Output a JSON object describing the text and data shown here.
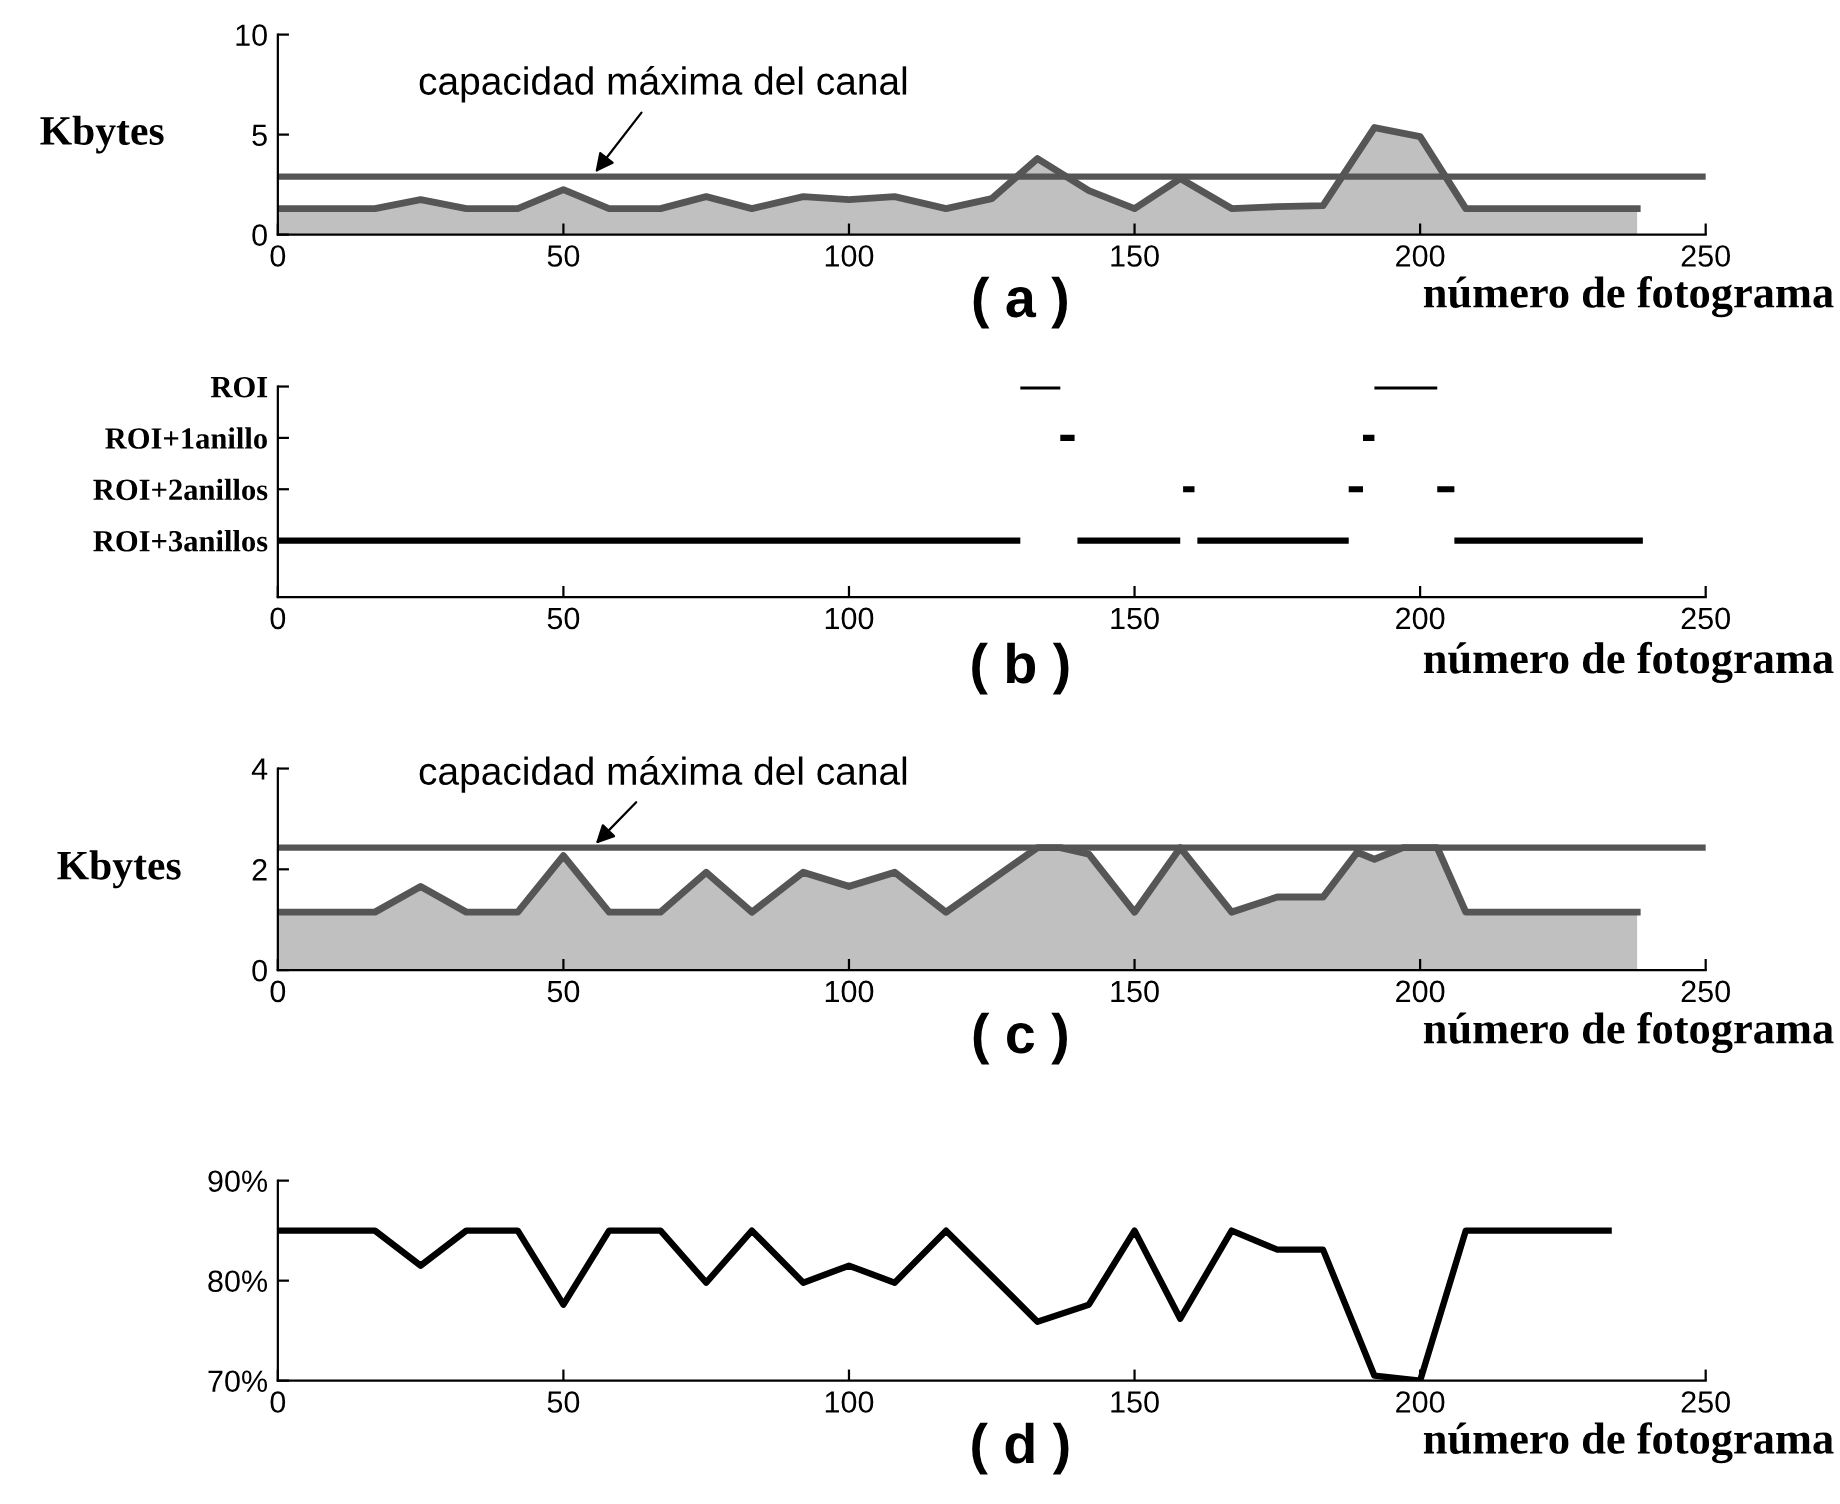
{
  "chart_data": [
    {
      "type": "area",
      "ylabel": "Kbytes",
      "xlabel": "número de fotograma",
      "annotations": [
        "( a )"
      ],
      "x": [
        0,
        17,
        25,
        33,
        42,
        50,
        58,
        67,
        75,
        83,
        92,
        100,
        108,
        117,
        125,
        133,
        142,
        150,
        158,
        167,
        175,
        183,
        192,
        200,
        208,
        238
      ],
      "series": [
        {
          "color": "#c0c0c0",
          "values": [
            1.3,
            1.3,
            1.75,
            1.3,
            1.3,
            2.25,
            1.3,
            1.3,
            1.9,
            1.3,
            1.9,
            1.75,
            1.9,
            1.3,
            1.8,
            3.8,
            2.2,
            1.3,
            2.8,
            1.3,
            1.4,
            1.45,
            5.35,
            4.9,
            1.3,
            1.3
          ]
        }
      ],
      "xlim": [
        0,
        250
      ],
      "xticks": [
        0,
        50,
        100,
        150,
        200,
        250
      ],
      "ylim": [
        0,
        10
      ],
      "yticks": [
        0,
        5,
        10
      ],
      "ref_lines": [
        {
          "axis": "y",
          "value": 2.9,
          "label": "capacidad máxima del canal",
          "color": "#555555"
        }
      ]
    },
    {
      "type": "bar",
      "orientation": "horizontal",
      "xlabel": "número de fotograma",
      "annotations": [
        "( b )"
      ],
      "categories": [
        "ROI",
        "ROI+1anillo",
        "ROI+2anillos",
        "ROI+3anillos"
      ],
      "series": [
        {
          "color": "#000000",
          "base": [
            130,
            137,
            158.5,
            0
          ],
          "values": [
            7,
            2.5,
            2,
            130
          ]
        },
        {
          "color": "#000000",
          "base": [
            192,
            190,
            187.5,
            140
          ],
          "values": [
            11,
            2,
            2.5,
            18
          ]
        },
        {
          "color": "#000000",
          "base": [
            null,
            null,
            203,
            161
          ],
          "values": [
            null,
            null,
            3,
            26.5
          ]
        },
        {
          "color": "#000000",
          "base": [
            null,
            null,
            null,
            206
          ],
          "values": [
            null,
            null,
            null,
            33
          ]
        }
      ],
      "xlim": [
        0,
        250
      ],
      "xticks": [
        0,
        50,
        100,
        150,
        200,
        250
      ]
    },
    {
      "type": "area",
      "ylabel": "Kbytes",
      "xlabel": "número de fotograma",
      "annotations": [
        "( c )"
      ],
      "x": [
        0,
        17,
        25,
        33,
        42,
        50,
        58,
        67,
        75,
        83,
        92,
        100,
        108,
        117,
        133,
        137,
        142,
        150,
        158,
        167,
        175,
        183,
        189,
        192,
        197,
        203,
        208,
        238
      ],
      "series": [
        {
          "color": "#c0c0c0",
          "values": [
            1.15,
            1.15,
            1.66,
            1.15,
            1.15,
            2.27,
            1.15,
            1.15,
            1.94,
            1.15,
            1.94,
            1.66,
            1.94,
            1.15,
            2.43,
            2.43,
            2.3,
            1.15,
            2.43,
            1.15,
            1.45,
            1.45,
            2.34,
            2.2,
            2.43,
            2.43,
            1.15,
            1.15
          ]
        }
      ],
      "xlim": [
        0,
        250
      ],
      "xticks": [
        0,
        50,
        100,
        150,
        200,
        250
      ],
      "ylim": [
        0,
        4
      ],
      "yticks": [
        0,
        2,
        4
      ],
      "ref_lines": [
        {
          "axis": "y",
          "value": 2.43,
          "label": "capacidad máxima del canal",
          "color": "#555555"
        }
      ]
    },
    {
      "type": "line",
      "xlabel": "número de fotograma",
      "annotations": [
        "( d )"
      ],
      "x": [
        0,
        17,
        25,
        33,
        42,
        50,
        58,
        67,
        75,
        83,
        92,
        100,
        108,
        117,
        133,
        142,
        150,
        158,
        167,
        175,
        183,
        192,
        200,
        208,
        233
      ],
      "series": [
        {
          "color": "#000000",
          "values": [
            85,
            85,
            81.5,
            85,
            85,
            77.6,
            85,
            85,
            79.8,
            85,
            79.8,
            81.5,
            79.8,
            85,
            75.9,
            77.6,
            85,
            76.2,
            85,
            83.1,
            83.1,
            70.5,
            70,
            85,
            85
          ]
        }
      ],
      "xlim": [
        0,
        250
      ],
      "xticks": [
        0,
        50,
        100,
        150,
        200,
        250
      ],
      "ylim": [
        70,
        90
      ],
      "yticks": [
        {
          "value": 70,
          "label": "70%"
        },
        {
          "value": 80,
          "label": "80%"
        },
        {
          "value": 90,
          "label": "90%"
        }
      ]
    }
  ]
}
